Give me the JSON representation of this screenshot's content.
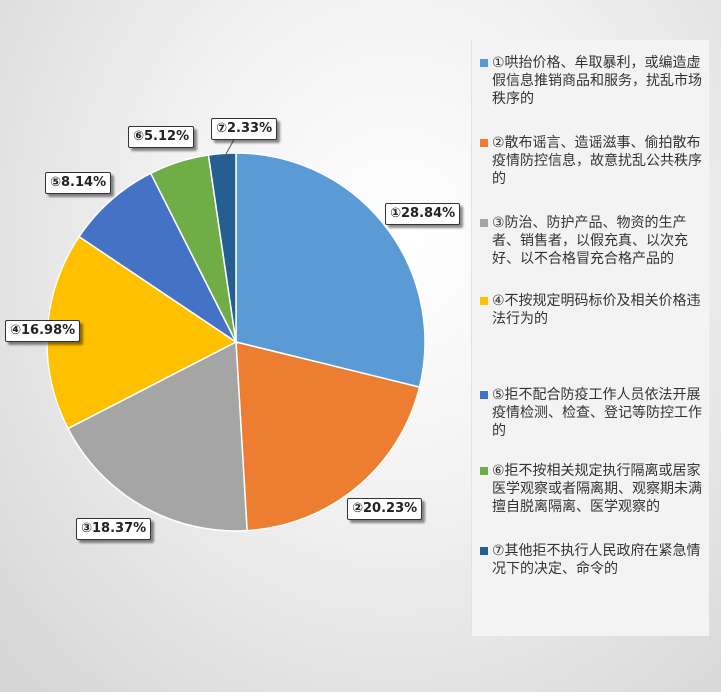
{
  "chart_data": {
    "type": "pie",
    "categories": [
      "①哄抬价格、牟取暴利，或编造虚假信息推销商品和服务，扰乱市场秩序的",
      "②散布谣言、造谣滋事、偷拍散布疫情防控信息，故意扰乱公共秩序的",
      "③防治、防护产品、物资的生产者、销售者，以假充真、以次充好、以不合格冒充合格产品的",
      "④不按规定明码标价及相关价格违法行为的",
      "⑤拒不配合防疫工作人员依法开展疫情检测、检查、登记等防控工作的",
      "⑥拒不按相关规定执行隔离或居家医学观察或者隔离期、观察期未满擅自脱离隔离、医学观察的",
      "⑦其他拒不执行人民政府在紧急情况下的决定、命令的"
    ],
    "values": [
      28.84,
      20.23,
      18.37,
      16.98,
      8.14,
      5.12,
      2.33
    ],
    "data_labels": [
      "①28.84%",
      "②20.23%",
      "③18.37%",
      "④16.98%",
      "⑤8.14%",
      "⑥5.12%",
      "⑦2.33%"
    ],
    "colors": [
      "#5b9bd5",
      "#ed7d31",
      "#a5a5a5",
      "#ffc000",
      "#4472c4",
      "#70ad47",
      "#255e91"
    ],
    "legend_position": "right"
  }
}
